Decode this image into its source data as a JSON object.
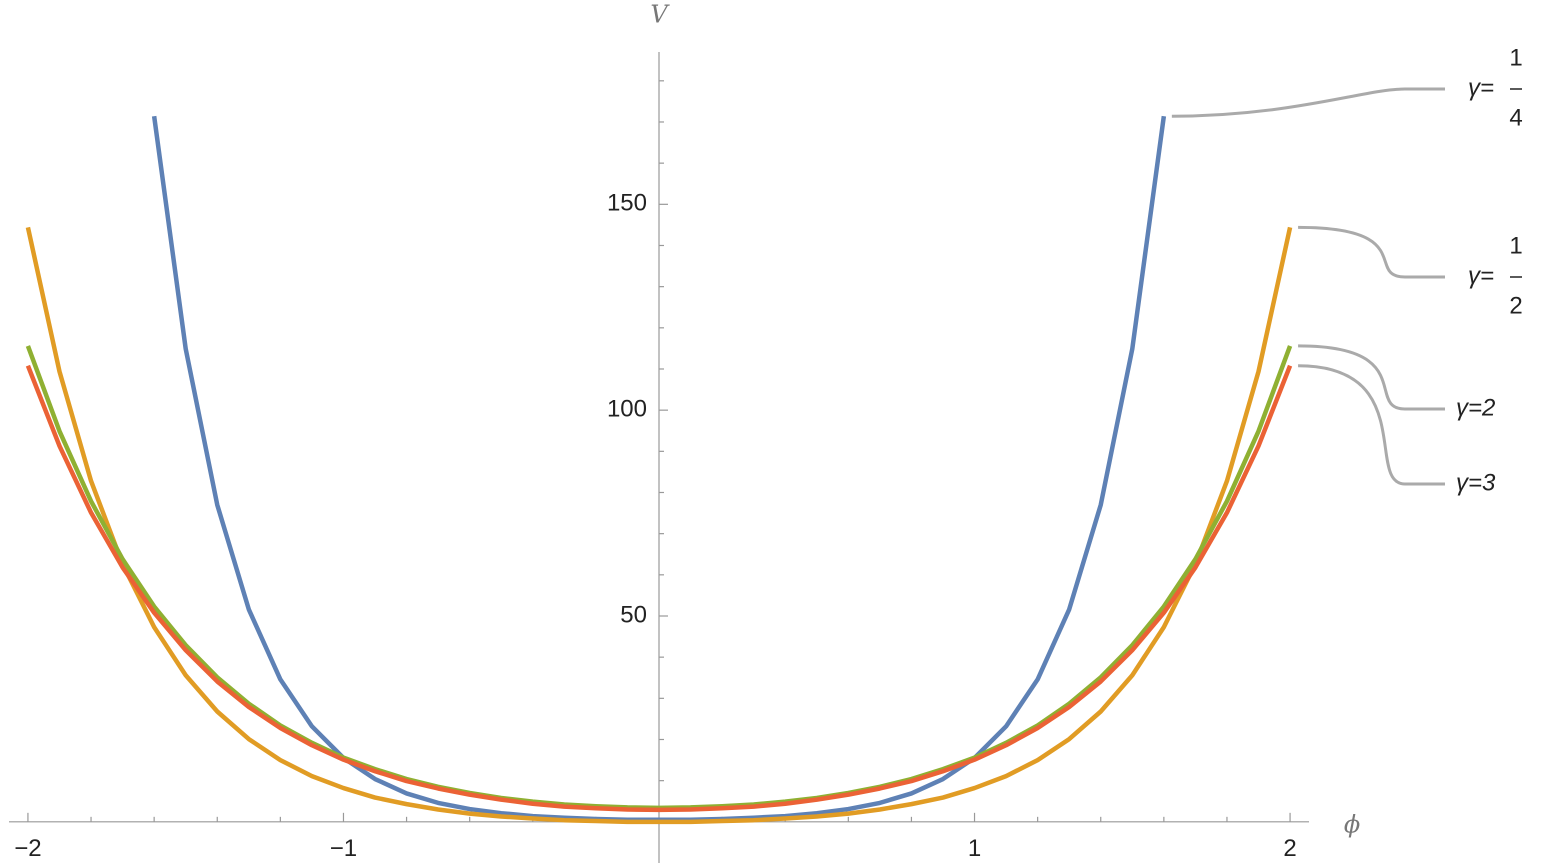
{
  "chart_data": {
    "type": "line",
    "x_label": "ϕ",
    "y_label": "V",
    "x": [
      -2,
      -1.9,
      -1.8,
      -1.7,
      -1.6,
      -1.5,
      -1.4,
      -1.3,
      -1.2,
      -1.1,
      -1,
      -0.9,
      -0.8,
      -0.7,
      -0.6,
      -0.5,
      -0.4,
      -0.3,
      -0.2,
      -0.1,
      0,
      0.1,
      0.2,
      0.3,
      0.4,
      0.5,
      0.6,
      0.7,
      0.8,
      0.9,
      1,
      1.1,
      1.2,
      1.3,
      1.4,
      1.5,
      1.6,
      1.7,
      1.8,
      1.9,
      2
    ],
    "series": [
      {
        "name": "γ=",
        "fraction": [
          "1",
          "4"
        ],
        "color": "#5e81b5",
        "values": [
          null,
          null,
          null,
          null,
          171.4,
          114.9,
          77.0,
          51.6,
          34.6,
          23.2,
          15.5,
          10.4,
          6.9,
          4.6,
          3.1,
          2.1,
          1.4,
          1.0,
          0.7,
          0.5,
          0.5,
          0.5,
          0.7,
          1.0,
          1.4,
          2.1,
          3.1,
          4.6,
          6.9,
          10.4,
          15.5,
          23.2,
          34.6,
          51.6,
          77.0,
          114.9,
          171.4,
          null,
          null,
          null,
          null
        ]
      },
      {
        "name": "γ=",
        "fraction": [
          "1",
          "2"
        ],
        "color": "#e19c24",
        "values": [
          144.4,
          109.4,
          82.8,
          62.6,
          47.3,
          35.6,
          26.8,
          20.1,
          15.0,
          11.1,
          8.2,
          5.9,
          4.3,
          3.0,
          2.0,
          1.3,
          0.8,
          0.4,
          0.2,
          0.0,
          0.0,
          0.0,
          0.2,
          0.4,
          0.8,
          1.3,
          2.0,
          3.0,
          4.3,
          5.9,
          8.2,
          11.1,
          15.0,
          20.1,
          26.8,
          35.6,
          47.3,
          62.6,
          82.8,
          109.4,
          144.4
        ]
      },
      {
        "name": "γ=2",
        "color": "#8fb032",
        "values": [
          115.6,
          94.9,
          77.9,
          63.8,
          52.3,
          42.9,
          35.1,
          28.7,
          23.4,
          19.2,
          15.6,
          12.8,
          10.4,
          8.5,
          7.0,
          5.8,
          4.9,
          4.2,
          3.8,
          3.5,
          3.4,
          3.5,
          3.8,
          4.2,
          4.9,
          5.8,
          7.0,
          8.5,
          10.4,
          12.8,
          15.6,
          19.2,
          23.4,
          28.7,
          35.1,
          42.9,
          52.3,
          63.8,
          77.9,
          94.9,
          115.6
        ]
      },
      {
        "name": "γ=3",
        "color": "#eb6235",
        "values": [
          110.8,
          91.3,
          75.1,
          61.8,
          50.8,
          41.7,
          34.1,
          27.9,
          22.8,
          18.6,
          15.1,
          12.3,
          9.9,
          8.1,
          6.6,
          5.4,
          4.4,
          3.7,
          3.3,
          3.0,
          2.9,
          3.0,
          3.3,
          3.7,
          4.4,
          5.4,
          6.6,
          8.1,
          9.9,
          12.3,
          15.1,
          18.6,
          22.8,
          27.9,
          34.1,
          41.7,
          50.8,
          61.8,
          75.1,
          91.3,
          110.8
        ]
      }
    ],
    "xlim": [
      -2.06,
      2.06
    ],
    "ylim": [
      -10,
      187
    ],
    "xticks": [
      {
        "value": -2,
        "label": "−2"
      },
      {
        "value": -1,
        "label": "−1"
      },
      1,
      2
    ],
    "yticks": [
      50,
      100,
      150
    ],
    "xminorticks": [
      -1.8,
      -1.6,
      -1.4,
      -1.2,
      -0.8,
      -0.6,
      -0.4,
      -0.2,
      0.2,
      0.4,
      0.6,
      0.8,
      1.2,
      1.4,
      1.6,
      1.8
    ],
    "yminorticks": [
      10,
      20,
      30,
      40,
      60,
      70,
      80,
      90,
      110,
      120,
      130,
      140,
      160,
      170,
      180
    ]
  }
}
